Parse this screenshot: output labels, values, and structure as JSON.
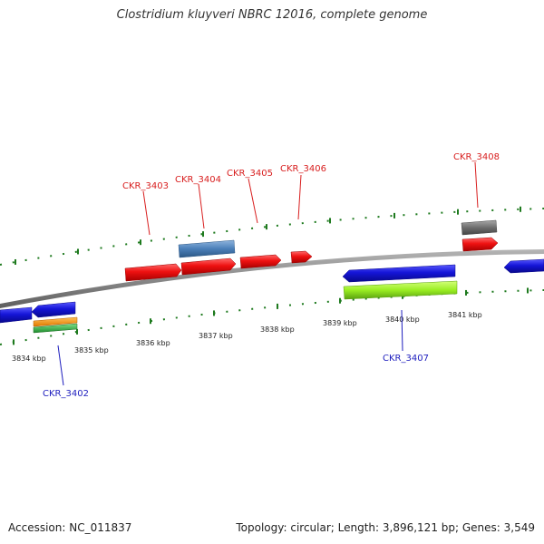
{
  "title": "Clostridium kluyveri NBRC 12016, complete genome",
  "footer": {
    "accession": "Accession: NC_011837",
    "topology": "Topology: circular; Length: 3,896,121 bp; Genes: 3,549"
  },
  "colors": {
    "backbone": "#808080",
    "tick": "#1e7a1e",
    "forward_label": "#d81e1e",
    "reverse_label": "#1e1ebe",
    "cds_red": "#ee1111",
    "cds_blue": "#1515d8",
    "steelblue": "#4a7fb8",
    "gray": "#707070",
    "lime": "#99ee22",
    "orange": "#ff9900",
    "green": "#33bb44"
  },
  "tick_labels": [
    {
      "name": "tick-3834",
      "text": "3834 kbp"
    },
    {
      "name": "tick-3835",
      "text": "3835 kbp"
    },
    {
      "name": "tick-3836",
      "text": "3836 kbp"
    },
    {
      "name": "tick-3837",
      "text": "3837 kbp"
    },
    {
      "name": "tick-3838",
      "text": "3838 kbp"
    },
    {
      "name": "tick-3839",
      "text": "3839 kbp"
    },
    {
      "name": "tick-3840",
      "text": "3840 kbp"
    },
    {
      "name": "tick-3841",
      "text": "3841 kbp"
    }
  ],
  "gene_labels": [
    {
      "name": "ckr-3402",
      "text": "CKR_3402",
      "strand": "reverse"
    },
    {
      "name": "ckr-3403",
      "text": "CKR_3403",
      "strand": "forward"
    },
    {
      "name": "ckr-3404",
      "text": "CKR_3404",
      "strand": "forward"
    },
    {
      "name": "ckr-3405",
      "text": "CKR_3405",
      "strand": "forward"
    },
    {
      "name": "ckr-3406",
      "text": "CKR_3406",
      "strand": "forward"
    },
    {
      "name": "ckr-3407",
      "text": "CKR_3407",
      "strand": "reverse"
    },
    {
      "name": "ckr-3408",
      "text": "CKR_3408",
      "strand": "forward"
    }
  ]
}
